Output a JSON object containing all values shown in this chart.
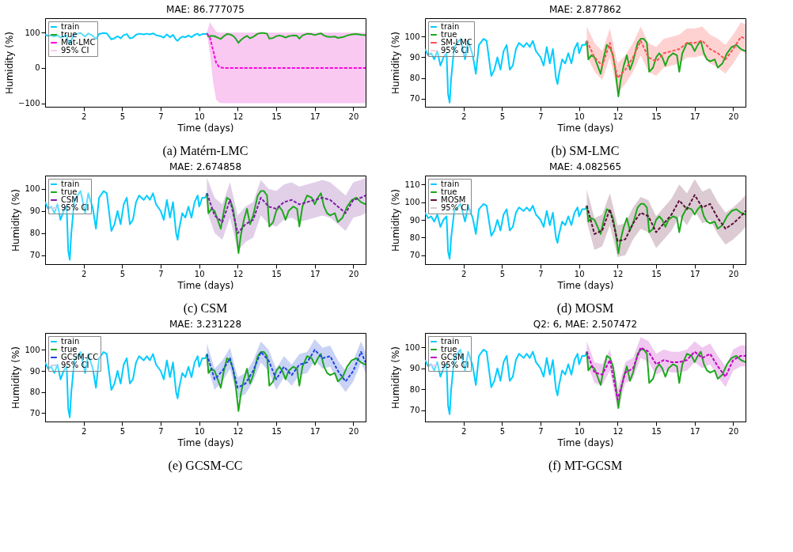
{
  "chart_data": [
    {
      "type": "line",
      "title": "MAE: 86.777075",
      "xlabel": "Time (days)",
      "ylabel": "Humidity (%)",
      "annotations": [
        "(a) Matérn-LMC"
      ],
      "legend": "top left",
      "xlim": [
        0,
        20.8
      ],
      "ylim": [
        -110,
        141
      ],
      "xticks": [
        {
          "value": 2.5,
          "label": "2"
        },
        5,
        {
          "value": 7.5,
          "label": "7"
        },
        10,
        {
          "value": 12.5,
          "label": "12"
        },
        15,
        {
          "value": 17.5,
          "label": "17"
        },
        20
      ],
      "yticks": [
        -100,
        0,
        100
      ],
      "series": [
        {
          "name": "train",
          "color": "#00ccff",
          "line_style": "solid",
          "x": [
            0,
            0.2,
            0.4,
            0.6,
            0.8,
            1.0,
            1.2,
            1.4,
            1.5,
            1.6,
            1.7,
            1.9,
            2.1,
            2.3,
            2.6,
            2.8,
            3.1,
            3.3,
            3.5,
            3.8,
            4.0,
            4.3,
            4.5,
            4.7,
            4.9,
            5.1,
            5.3,
            5.5,
            5.7,
            5.9,
            6.1,
            6.4,
            6.6,
            6.8,
            7.0,
            7.2,
            7.5,
            7.7,
            7.9,
            8.1,
            8.3,
            8.5,
            8.6,
            8.7,
            8.9,
            9.1,
            9.3,
            9.5,
            9.7,
            9.9,
            10.0,
            10.2,
            10.4,
            10.5
          ],
          "values": [
            94,
            91,
            92,
            89,
            93,
            86,
            90,
            92,
            72,
            68,
            80,
            95,
            97,
            99,
            89,
            98,
            91,
            82,
            96,
            99,
            98,
            81,
            84,
            90,
            84,
            93,
            96,
            84,
            86,
            94,
            97,
            95,
            97,
            95,
            98,
            93,
            90,
            86,
            95,
            87,
            94,
            80,
            77,
            82,
            89,
            87,
            92,
            87,
            94,
            97,
            92,
            96,
            96,
            98
          ]
        },
        {
          "name": "true",
          "color": "#1ca81c",
          "line_style": "solid",
          "x": [
            10.5,
            10.6,
            10.8,
            11.0,
            11.2,
            11.4,
            11.6,
            11.8,
            12.0,
            12.2,
            12.35,
            12.55,
            12.7,
            12.9,
            13.1,
            13.3,
            13.5,
            13.8,
            14.0,
            14.2,
            14.4,
            14.55,
            14.8,
            15.0,
            15.2,
            15.4,
            15.6,
            15.8,
            16.1,
            16.35,
            16.5,
            16.7,
            17.0,
            17.3,
            17.5,
            17.7,
            17.9,
            18.1,
            18.3,
            18.5,
            18.8,
            19.0,
            19.3,
            19.6,
            19.9,
            20.2,
            20.5,
            20.8
          ],
          "values": [
            98,
            89,
            91,
            90,
            86,
            82,
            90,
            96,
            95,
            91,
            84,
            71,
            79,
            86,
            91,
            84,
            88,
            97,
            99,
            99,
            97,
            83,
            85,
            90,
            92,
            90,
            86,
            90,
            92,
            91,
            83,
            92,
            97,
            96,
            93,
            96,
            98,
            92,
            89,
            88,
            89,
            85,
            87,
            92,
            95,
            96,
            94,
            93
          ]
        },
        {
          "name": "Mat-LMC",
          "color": "#ff00dd",
          "line_style": "dashed",
          "x": [
            10.5,
            10.7,
            10.9,
            11.1,
            11.3,
            11.6,
            12,
            13,
            14,
            15,
            16,
            17,
            18,
            19,
            20,
            20.8
          ],
          "values": [
            98,
            85,
            50,
            15,
            2,
            0,
            0,
            0,
            0,
            0,
            0,
            0,
            0,
            0,
            0,
            0
          ],
          "lower": [
            96,
            40,
            -40,
            -90,
            -99,
            -100,
            -100,
            -100,
            -100,
            -100,
            -100,
            -100,
            -100,
            -100,
            -100,
            -100
          ],
          "upper": [
            100,
            130,
            115,
            103,
            100,
            100,
            100,
            100,
            100,
            100,
            100,
            100,
            100,
            100,
            100,
            100
          ]
        },
        {
          "name": "95% CI",
          "type": "area",
          "color": "#f9c9f2"
        }
      ]
    },
    {
      "type": "line",
      "title": "MAE: 2.877862",
      "xlabel": "Time (days)",
      "ylabel": "Humidity (%)",
      "annotations": [
        "(b) SM-LMC"
      ],
      "legend": "top left",
      "xlim": [
        0,
        20.8
      ],
      "ylim": [
        66,
        109
      ],
      "xticks": [
        {
          "value": 2.5,
          "label": "2"
        },
        5,
        {
          "value": 7.5,
          "label": "7"
        },
        10,
        {
          "value": 12.5,
          "label": "12"
        },
        15,
        {
          "value": 17.5,
          "label": "17"
        },
        20
      ],
      "yticks": [
        70,
        80,
        90,
        100
      ],
      "series": [
        {
          "name": "train",
          "color": "#00ccff",
          "line_style": "solid",
          "x": [
            0,
            0.2,
            0.4,
            0.6,
            0.8,
            1.0,
            1.2,
            1.4,
            1.5,
            1.6,
            1.7,
            1.9,
            2.1,
            2.3,
            2.6,
            2.8,
            3.1,
            3.3,
            3.5,
            3.8,
            4.0,
            4.3,
            4.5,
            4.7,
            4.9,
            5.1,
            5.3,
            5.5,
            5.7,
            5.9,
            6.1,
            6.4,
            6.6,
            6.8,
            7.0,
            7.2,
            7.5,
            7.7,
            7.9,
            8.1,
            8.3,
            8.5,
            8.6,
            8.7,
            8.9,
            9.1,
            9.3,
            9.5,
            9.7,
            9.9,
            10.0,
            10.2,
            10.4,
            10.5
          ],
          "values": [
            94,
            91,
            92,
            89,
            93,
            86,
            90,
            92,
            72,
            68,
            80,
            95,
            97,
            99,
            89,
            98,
            91,
            82,
            96,
            99,
            98,
            81,
            84,
            90,
            84,
            93,
            96,
            84,
            86,
            94,
            97,
            95,
            97,
            95,
            98,
            93,
            90,
            86,
            95,
            87,
            94,
            80,
            77,
            82,
            89,
            87,
            92,
            87,
            94,
            97,
            92,
            96,
            96,
            98
          ]
        },
        {
          "name": "true",
          "color": "#1ca81c",
          "line_style": "solid",
          "x": [
            10.5,
            10.6,
            10.8,
            11.0,
            11.2,
            11.4,
            11.6,
            11.8,
            12.0,
            12.2,
            12.35,
            12.55,
            12.7,
            12.9,
            13.1,
            13.3,
            13.5,
            13.8,
            14.0,
            14.2,
            14.4,
            14.55,
            14.8,
            15.0,
            15.2,
            15.4,
            15.6,
            15.8,
            16.1,
            16.35,
            16.5,
            16.7,
            17.0,
            17.3,
            17.5,
            17.7,
            17.9,
            18.1,
            18.3,
            18.5,
            18.8,
            19.0,
            19.3,
            19.6,
            19.9,
            20.2,
            20.5,
            20.8
          ],
          "values": [
            98,
            89,
            91,
            90,
            86,
            82,
            90,
            96,
            95,
            91,
            84,
            71,
            79,
            86,
            91,
            84,
            88,
            97,
            99,
            99,
            97,
            83,
            85,
            90,
            92,
            90,
            86,
            90,
            92,
            91,
            83,
            92,
            97,
            96,
            93,
            96,
            98,
            92,
            89,
            88,
            89,
            85,
            87,
            92,
            95,
            96,
            94,
            93
          ]
        },
        {
          "name": "SM-LMC",
          "color": "#ff5050",
          "line_style": "dashed",
          "x": [
            10.5,
            11,
            11.5,
            12,
            12.5,
            13,
            13.5,
            14,
            14.5,
            15,
            15.5,
            16,
            16.5,
            17,
            17.5,
            18,
            18.5,
            19,
            19.5,
            20,
            20.5,
            20.8
          ],
          "values": [
            98,
            90,
            86,
            97,
            80,
            84,
            90,
            98,
            90,
            88,
            92,
            93,
            94,
            97,
            97,
            98,
            94,
            92,
            89,
            94,
            100,
            99
          ],
          "lower": [
            91,
            83,
            79,
            90,
            73,
            77,
            83,
            91,
            83,
            81,
            85,
            86,
            87,
            90,
            90,
            91,
            87,
            85,
            82,
            87,
            93,
            92
          ],
          "upper": [
            105,
            97,
            93,
            104,
            87,
            91,
            97,
            105,
            97,
            95,
            99,
            100,
            101,
            104,
            104,
            105,
            101,
            99,
            96,
            101,
            107,
            106
          ]
        },
        {
          "name": "95% CI",
          "type": "area",
          "color": "#ffd2d2"
        }
      ]
    },
    {
      "type": "line",
      "title": "MAE: 2.674858",
      "xlabel": "Time (days)",
      "ylabel": "Humidity (%)",
      "annotations": [
        "(c) CSM"
      ],
      "legend": "top left",
      "xlim": [
        0,
        20.8
      ],
      "ylim": [
        66,
        106
      ],
      "xticks": [
        {
          "value": 2.5,
          "label": "2"
        },
        5,
        {
          "value": 7.5,
          "label": "7"
        },
        10,
        {
          "value": 12.5,
          "label": "12"
        },
        15,
        {
          "value": 17.5,
          "label": "17"
        },
        20
      ],
      "yticks": [
        70,
        80,
        90,
        100
      ],
      "series": [
        {
          "name": "train",
          "color": "#00ccff",
          "line_style": "solid",
          "x": [
            0,
            0.2,
            0.4,
            0.6,
            0.8,
            1.0,
            1.2,
            1.4,
            1.5,
            1.6,
            1.7,
            1.9,
            2.1,
            2.3,
            2.6,
            2.8,
            3.1,
            3.3,
            3.5,
            3.8,
            4.0,
            4.3,
            4.5,
            4.7,
            4.9,
            5.1,
            5.3,
            5.5,
            5.7,
            5.9,
            6.1,
            6.4,
            6.6,
            6.8,
            7.0,
            7.2,
            7.5,
            7.7,
            7.9,
            8.1,
            8.3,
            8.5,
            8.6,
            8.7,
            8.9,
            9.1,
            9.3,
            9.5,
            9.7,
            9.9,
            10.0,
            10.2,
            10.4,
            10.5
          ],
          "values": [
            94,
            91,
            92,
            89,
            93,
            86,
            90,
            92,
            72,
            68,
            80,
            95,
            97,
            99,
            89,
            98,
            91,
            82,
            96,
            99,
            98,
            81,
            84,
            90,
            84,
            93,
            96,
            84,
            86,
            94,
            97,
            95,
            97,
            95,
            98,
            93,
            90,
            86,
            95,
            87,
            94,
            80,
            77,
            82,
            89,
            87,
            92,
            87,
            94,
            97,
            92,
            96,
            96,
            98
          ]
        },
        {
          "name": "true",
          "color": "#1ca81c",
          "line_style": "solid",
          "x": [
            10.5,
            10.6,
            10.8,
            11.0,
            11.2,
            11.4,
            11.6,
            11.8,
            12.0,
            12.2,
            12.35,
            12.55,
            12.7,
            12.9,
            13.1,
            13.3,
            13.5,
            13.8,
            14.0,
            14.2,
            14.4,
            14.55,
            14.8,
            15.0,
            15.2,
            15.4,
            15.6,
            15.8,
            16.1,
            16.35,
            16.5,
            16.7,
            17.0,
            17.3,
            17.5,
            17.7,
            17.9,
            18.1,
            18.3,
            18.5,
            18.8,
            19.0,
            19.3,
            19.6,
            19.9,
            20.2,
            20.5,
            20.8
          ],
          "values": [
            98,
            89,
            91,
            90,
            86,
            82,
            90,
            96,
            95,
            91,
            84,
            71,
            79,
            86,
            91,
            84,
            88,
            97,
            99,
            99,
            97,
            83,
            85,
            90,
            92,
            90,
            86,
            90,
            92,
            91,
            83,
            92,
            97,
            96,
            93,
            96,
            98,
            92,
            89,
            88,
            89,
            85,
            87,
            92,
            95,
            96,
            94,
            93
          ]
        },
        {
          "name": "CSM",
          "color": "#7b1fa2",
          "line_style": "dashed",
          "x": [
            10.5,
            11,
            11.5,
            12,
            12.5,
            13,
            13.5,
            14,
            14.5,
            15,
            15.5,
            16,
            16.5,
            17,
            17.5,
            18,
            18.5,
            19,
            19.5,
            20,
            20.5,
            20.8
          ],
          "values": [
            98,
            88,
            85,
            95,
            80,
            84,
            86,
            96,
            92,
            91,
            94,
            95,
            93,
            94,
            95,
            96,
            95,
            92,
            89,
            95,
            96,
            97
          ],
          "lower": [
            90,
            80,
            77,
            87,
            72,
            76,
            78,
            88,
            84,
            83,
            86,
            87,
            85,
            86,
            87,
            88,
            87,
            84,
            81,
            87,
            88,
            89
          ],
          "upper": [
            105,
            96,
            93,
            103,
            88,
            92,
            94,
            104,
            100,
            99,
            102,
            103,
            101,
            102,
            103,
            104,
            103,
            100,
            97,
            103,
            104,
            105
          ]
        },
        {
          "name": "95% CI",
          "type": "area",
          "color": "#e1cfe8"
        }
      ]
    },
    {
      "type": "line",
      "title": "MAE: 4.082565",
      "xlabel": "Time (days)",
      "ylabel": "Humidity (%)",
      "annotations": [
        "(d) MOSM"
      ],
      "legend": "top left",
      "xlim": [
        0,
        20.8
      ],
      "ylim": [
        65,
        115
      ],
      "xticks": [
        {
          "value": 2.5,
          "label": "2"
        },
        5,
        {
          "value": 7.5,
          "label": "7"
        },
        10,
        {
          "value": 12.5,
          "label": "12"
        },
        15,
        {
          "value": 17.5,
          "label": "17"
        },
        20
      ],
      "yticks": [
        70,
        80,
        90,
        100,
        110
      ],
      "series": [
        {
          "name": "train",
          "color": "#00ccff",
          "line_style": "solid",
          "x": [
            0,
            0.2,
            0.4,
            0.6,
            0.8,
            1.0,
            1.2,
            1.4,
            1.5,
            1.6,
            1.7,
            1.9,
            2.1,
            2.3,
            2.6,
            2.8,
            3.1,
            3.3,
            3.5,
            3.8,
            4.0,
            4.3,
            4.5,
            4.7,
            4.9,
            5.1,
            5.3,
            5.5,
            5.7,
            5.9,
            6.1,
            6.4,
            6.6,
            6.8,
            7.0,
            7.2,
            7.5,
            7.7,
            7.9,
            8.1,
            8.3,
            8.5,
            8.6,
            8.7,
            8.9,
            9.1,
            9.3,
            9.5,
            9.7,
            9.9,
            10.0,
            10.2,
            10.4,
            10.5
          ],
          "values": [
            94,
            91,
            92,
            89,
            93,
            86,
            90,
            92,
            72,
            68,
            80,
            95,
            97,
            99,
            89,
            98,
            91,
            82,
            96,
            99,
            98,
            81,
            84,
            90,
            84,
            93,
            96,
            84,
            86,
            94,
            97,
            95,
            97,
            95,
            98,
            93,
            90,
            86,
            95,
            87,
            94,
            80,
            77,
            82,
            89,
            87,
            92,
            87,
            94,
            97,
            92,
            96,
            96,
            98
          ]
        },
        {
          "name": "true",
          "color": "#1ca81c",
          "line_style": "solid",
          "x": [
            10.5,
            10.6,
            10.8,
            11.0,
            11.2,
            11.4,
            11.6,
            11.8,
            12.0,
            12.2,
            12.35,
            12.55,
            12.7,
            12.9,
            13.1,
            13.3,
            13.5,
            13.8,
            14.0,
            14.2,
            14.4,
            14.55,
            14.8,
            15.0,
            15.2,
            15.4,
            15.6,
            15.8,
            16.1,
            16.35,
            16.5,
            16.7,
            17.0,
            17.3,
            17.5,
            17.7,
            17.9,
            18.1,
            18.3,
            18.5,
            18.8,
            19.0,
            19.3,
            19.6,
            19.9,
            20.2,
            20.5,
            20.8
          ],
          "values": [
            98,
            89,
            91,
            90,
            86,
            82,
            90,
            96,
            95,
            91,
            84,
            71,
            79,
            86,
            91,
            84,
            88,
            97,
            99,
            99,
            97,
            83,
            85,
            90,
            92,
            90,
            86,
            90,
            92,
            91,
            83,
            92,
            97,
            96,
            93,
            96,
            98,
            92,
            89,
            88,
            89,
            85,
            87,
            92,
            95,
            96,
            94,
            93
          ]
        },
        {
          "name": "MOSM",
          "color": "#5b1037",
          "line_style": "dashed",
          "x": [
            10.5,
            11,
            11.5,
            12,
            12.5,
            13,
            13.5,
            14,
            14.5,
            15,
            15.5,
            16,
            16.5,
            17,
            17.5,
            18,
            18.5,
            19,
            19.5,
            20,
            20.5,
            20.8
          ],
          "values": [
            98,
            82,
            84,
            96,
            78,
            79,
            88,
            94,
            92,
            83,
            88,
            93,
            101,
            96,
            104,
            97,
            99,
            91,
            85,
            88,
            92,
            95
          ],
          "lower": [
            89,
            73,
            75,
            87,
            69,
            70,
            79,
            85,
            83,
            74,
            79,
            84,
            92,
            87,
            95,
            88,
            90,
            82,
            76,
            79,
            83,
            86
          ],
          "upper": [
            107,
            91,
            93,
            105,
            87,
            88,
            97,
            103,
            101,
            92,
            97,
            102,
            110,
            105,
            113,
            106,
            108,
            100,
            94,
            97,
            101,
            104
          ]
        },
        {
          "name": "95% CI",
          "type": "area",
          "color": "#dccbd3"
        }
      ]
    },
    {
      "type": "line",
      "title": "MAE: 3.231228",
      "xlabel": "Time (days)",
      "ylabel": "Humidity (%)",
      "annotations": [
        "(e) GCSM-CC"
      ],
      "legend": "top left",
      "xlim": [
        0,
        20.8
      ],
      "ylim": [
        66,
        108
      ],
      "xticks": [
        {
          "value": 2.5,
          "label": "2"
        },
        5,
        {
          "value": 7.5,
          "label": "7"
        },
        10,
        {
          "value": 12.5,
          "label": "12"
        },
        15,
        {
          "value": 17.5,
          "label": "17"
        },
        20
      ],
      "yticks": [
        70,
        80,
        90,
        100
      ],
      "series": [
        {
          "name": "train",
          "color": "#00ccff",
          "line_style": "solid",
          "x": [
            0,
            0.2,
            0.4,
            0.6,
            0.8,
            1.0,
            1.2,
            1.4,
            1.5,
            1.6,
            1.7,
            1.9,
            2.1,
            2.3,
            2.6,
            2.8,
            3.1,
            3.3,
            3.5,
            3.8,
            4.0,
            4.3,
            4.5,
            4.7,
            4.9,
            5.1,
            5.3,
            5.5,
            5.7,
            5.9,
            6.1,
            6.4,
            6.6,
            6.8,
            7.0,
            7.2,
            7.5,
            7.7,
            7.9,
            8.1,
            8.3,
            8.5,
            8.6,
            8.7,
            8.9,
            9.1,
            9.3,
            9.5,
            9.7,
            9.9,
            10.0,
            10.2,
            10.4,
            10.5
          ],
          "values": [
            94,
            91,
            92,
            89,
            93,
            86,
            90,
            92,
            72,
            68,
            80,
            95,
            97,
            99,
            89,
            98,
            91,
            82,
            96,
            99,
            98,
            81,
            84,
            90,
            84,
            93,
            96,
            84,
            86,
            94,
            97,
            95,
            97,
            95,
            98,
            93,
            90,
            86,
            95,
            87,
            94,
            80,
            77,
            82,
            89,
            87,
            92,
            87,
            94,
            97,
            92,
            96,
            96,
            98
          ]
        },
        {
          "name": "true",
          "color": "#1ca81c",
          "line_style": "solid",
          "x": [
            10.5,
            10.6,
            10.8,
            11.0,
            11.2,
            11.4,
            11.6,
            11.8,
            12.0,
            12.2,
            12.35,
            12.55,
            12.7,
            12.9,
            13.1,
            13.3,
            13.5,
            13.8,
            14.0,
            14.2,
            14.4,
            14.55,
            14.8,
            15.0,
            15.2,
            15.4,
            15.6,
            15.8,
            16.1,
            16.35,
            16.5,
            16.7,
            17.0,
            17.3,
            17.5,
            17.7,
            17.9,
            18.1,
            18.3,
            18.5,
            18.8,
            19.0,
            19.3,
            19.6,
            19.9,
            20.2,
            20.5,
            20.8
          ],
          "values": [
            98,
            89,
            91,
            90,
            86,
            82,
            90,
            96,
            95,
            91,
            84,
            71,
            79,
            86,
            91,
            84,
            88,
            97,
            99,
            99,
            97,
            83,
            85,
            90,
            92,
            90,
            86,
            90,
            92,
            91,
            83,
            92,
            97,
            96,
            93,
            96,
            98,
            92,
            89,
            88,
            89,
            85,
            87,
            92,
            95,
            96,
            94,
            93
          ]
        },
        {
          "name": "GCSM-CC",
          "color": "#1f44e0",
          "line_style": "dashed",
          "x": [
            10.5,
            11,
            11.5,
            12,
            12.5,
            13,
            13.5,
            14,
            14.5,
            15,
            15.5,
            16,
            16.5,
            17,
            17.5,
            18,
            18.5,
            19,
            19.5,
            20,
            20.5,
            20.8
          ],
          "values": [
            98,
            86,
            90,
            96,
            82,
            84,
            90,
            99,
            95,
            86,
            92,
            88,
            93,
            94,
            100,
            96,
            97,
            90,
            85,
            90,
            99,
            94
          ],
          "lower": [
            93,
            81,
            85,
            91,
            77,
            79,
            85,
            94,
            90,
            81,
            87,
            83,
            88,
            89,
            95,
            91,
            92,
            85,
            80,
            85,
            94,
            89
          ],
          "upper": [
            103,
            91,
            95,
            101,
            87,
            89,
            95,
            104,
            100,
            91,
            97,
            93,
            98,
            99,
            105,
            101,
            102,
            95,
            90,
            95,
            104,
            99
          ]
        },
        {
          "name": "95% CI",
          "type": "area",
          "color": "#c9d3f5"
        }
      ]
    },
    {
      "type": "line",
      "title": "Q2: 6, MAE: 2.507472",
      "xlabel": "Time (days)",
      "ylabel": "Humidity (%)",
      "annotations": [
        "(f) MT-GCSM"
      ],
      "legend": "top left",
      "xlim": [
        0,
        20.8
      ],
      "ylim": [
        64.5,
        107
      ],
      "xticks": [
        {
          "value": 2.5,
          "label": "2"
        },
        5,
        {
          "value": 7.5,
          "label": "7"
        },
        10,
        {
          "value": 12.5,
          "label": "12"
        },
        15,
        {
          "value": 17.5,
          "label": "17"
        },
        20
      ],
      "yticks": [
        70,
        80,
        90,
        100
      ],
      "series": [
        {
          "name": "train",
          "color": "#00ccff",
          "line_style": "solid",
          "x": [
            0,
            0.2,
            0.4,
            0.6,
            0.8,
            1.0,
            1.2,
            1.4,
            1.5,
            1.6,
            1.7,
            1.9,
            2.1,
            2.3,
            2.6,
            2.8,
            3.1,
            3.3,
            3.5,
            3.8,
            4.0,
            4.3,
            4.5,
            4.7,
            4.9,
            5.1,
            5.3,
            5.5,
            5.7,
            5.9,
            6.1,
            6.4,
            6.6,
            6.8,
            7.0,
            7.2,
            7.5,
            7.7,
            7.9,
            8.1,
            8.3,
            8.5,
            8.6,
            8.7,
            8.9,
            9.1,
            9.3,
            9.5,
            9.7,
            9.9,
            10.0,
            10.2,
            10.4,
            10.5
          ],
          "values": [
            94,
            91,
            92,
            89,
            93,
            86,
            90,
            92,
            72,
            68,
            80,
            95,
            97,
            99,
            89,
            98,
            91,
            82,
            96,
            99,
            98,
            81,
            84,
            90,
            84,
            93,
            96,
            84,
            86,
            94,
            97,
            95,
            97,
            95,
            98,
            93,
            90,
            86,
            95,
            87,
            94,
            80,
            77,
            82,
            89,
            87,
            92,
            87,
            94,
            97,
            92,
            96,
            96,
            98
          ]
        },
        {
          "name": "true",
          "color": "#1ca81c",
          "line_style": "solid",
          "x": [
            10.5,
            10.6,
            10.8,
            11.0,
            11.2,
            11.4,
            11.6,
            11.8,
            12.0,
            12.2,
            12.35,
            12.55,
            12.7,
            12.9,
            13.1,
            13.3,
            13.5,
            13.8,
            14.0,
            14.2,
            14.4,
            14.55,
            14.8,
            15.0,
            15.2,
            15.4,
            15.6,
            15.8,
            16.1,
            16.35,
            16.5,
            16.7,
            17.0,
            17.3,
            17.5,
            17.7,
            17.9,
            18.1,
            18.3,
            18.5,
            18.8,
            19.0,
            19.3,
            19.6,
            19.9,
            20.2,
            20.5,
            20.8
          ],
          "values": [
            98,
            89,
            91,
            90,
            86,
            82,
            90,
            96,
            95,
            91,
            84,
            71,
            79,
            86,
            91,
            84,
            88,
            97,
            99,
            99,
            97,
            83,
            85,
            90,
            92,
            90,
            86,
            90,
            92,
            91,
            83,
            92,
            97,
            96,
            93,
            96,
            98,
            92,
            89,
            88,
            89,
            85,
            87,
            92,
            95,
            96,
            94,
            93
          ]
        },
        {
          "name": "GCSM",
          "color": "#c000c0",
          "line_style": "dashed",
          "x": [
            10.5,
            11,
            11.5,
            12,
            12.5,
            13,
            13.5,
            14,
            14.5,
            15,
            15.5,
            16,
            16.5,
            17,
            17.5,
            18,
            18.5,
            19,
            19.5,
            20,
            20.5,
            20.8
          ],
          "values": [
            98,
            88,
            87,
            94,
            75,
            88,
            90,
            100,
            98,
            92,
            94,
            93,
            93,
            94,
            98,
            95,
            97,
            91,
            86,
            94,
            96,
            96
          ],
          "lower": [
            93,
            83,
            82,
            89,
            70,
            83,
            85,
            95,
            93,
            87,
            89,
            88,
            88,
            89,
            93,
            90,
            92,
            86,
            81,
            89,
            91,
            91
          ],
          "upper": [
            103,
            93,
            92,
            99,
            80,
            93,
            95,
            105,
            103,
            97,
            99,
            98,
            98,
            99,
            103,
            100,
            102,
            96,
            91,
            99,
            101,
            101
          ]
        },
        {
          "name": "95% CI",
          "type": "area",
          "color": "#f0c8f0"
        }
      ]
    }
  ]
}
